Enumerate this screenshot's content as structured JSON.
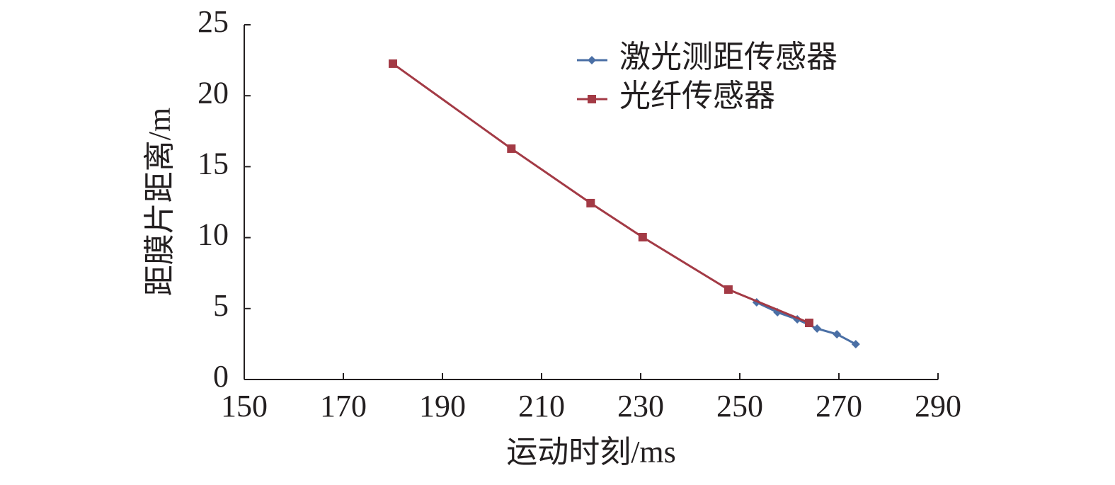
{
  "chart_data": {
    "type": "line",
    "xlabel": "运动时刻/ms",
    "ylabel": "距膜片距离/m",
    "xlim": [
      150,
      290
    ],
    "xticks": [
      150,
      170,
      190,
      210,
      230,
      250,
      270,
      290
    ],
    "ylim": [
      0,
      25
    ],
    "yticks": [
      0,
      5,
      10,
      15,
      20,
      25
    ],
    "legend": "top-right",
    "series": [
      {
        "name": "激光测距传感器",
        "color": "#4a6fa5",
        "marker": "diamond",
        "x": [
          253.4,
          257.6,
          261.6,
          265.6,
          269.6,
          273.4
        ],
        "values": [
          5.44,
          4.74,
          4.24,
          3.59,
          3.19,
          2.49
        ]
      },
      {
        "name": "光纤传感器",
        "color": "#a33a45",
        "marker": "square",
        "x": [
          180,
          203.9,
          219.9,
          230.4,
          247.7,
          264
        ],
        "values": [
          22.26,
          16.27,
          12.43,
          10.03,
          6.34,
          3.99
        ]
      }
    ]
  }
}
